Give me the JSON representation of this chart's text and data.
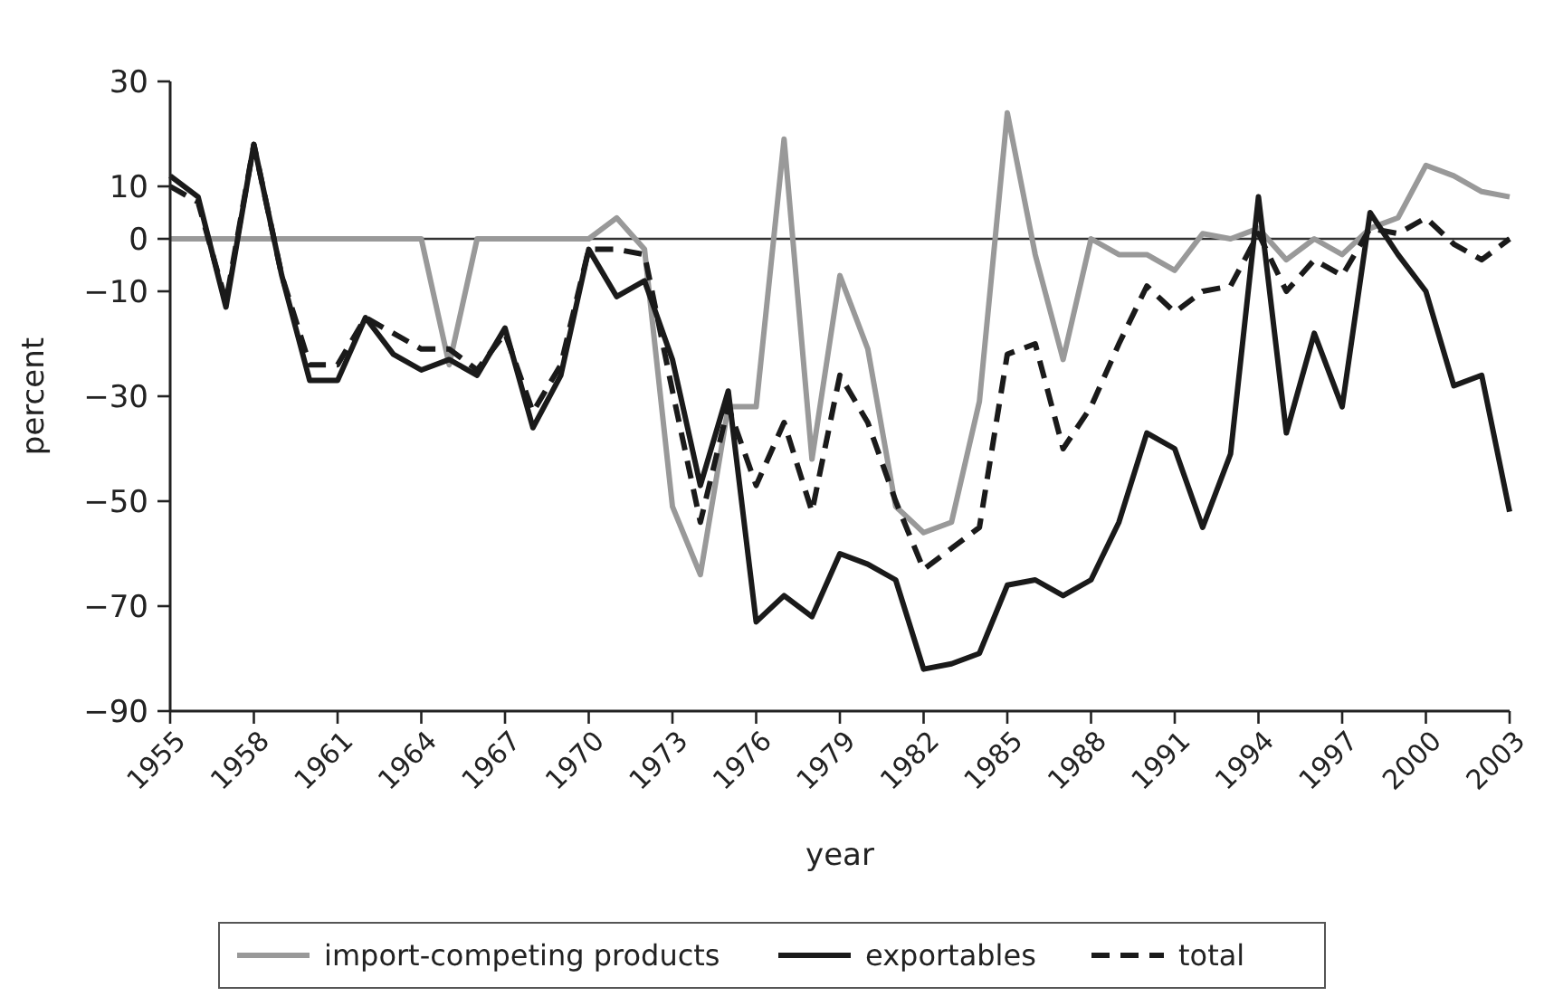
{
  "chart_data": {
    "type": "line",
    "xlabel": "year",
    "ylabel": "percent",
    "x": [
      1955,
      1956,
      1957,
      1958,
      1959,
      1960,
      1961,
      1962,
      1963,
      1964,
      1965,
      1966,
      1967,
      1968,
      1969,
      1970,
      1971,
      1972,
      1973,
      1974,
      1975,
      1976,
      1977,
      1978,
      1979,
      1980,
      1981,
      1982,
      1983,
      1984,
      1985,
      1986,
      1987,
      1988,
      1989,
      1990,
      1991,
      1992,
      1993,
      1994,
      1995,
      1996,
      1997,
      1998,
      1999,
      2000,
      2001,
      2002,
      2003
    ],
    "xlim": [
      1955,
      2003
    ],
    "xticks": [
      1955,
      1958,
      1961,
      1964,
      1967,
      1970,
      1973,
      1976,
      1979,
      1982,
      1985,
      1988,
      1991,
      1994,
      1997,
      2000,
      2003
    ],
    "ylim": [
      -90,
      30
    ],
    "yticks": [
      30,
      10,
      0,
      -10,
      -30,
      -50,
      -70,
      -90
    ],
    "series": [
      {
        "name": "import-competing products",
        "color": "#999999",
        "line_style": "solid",
        "values": [
          0,
          0,
          0,
          0,
          0,
          0,
          0,
          0,
          0,
          0,
          -24,
          0,
          0,
          0,
          0,
          0,
          4,
          -2,
          -51,
          -64,
          -32,
          -32,
          19,
          -42,
          -7,
          -21,
          -51,
          -56,
          -54,
          -31,
          24,
          -3,
          -23,
          0,
          -3,
          -3,
          -6,
          1,
          0,
          2,
          -4,
          0,
          -3,
          2,
          4,
          14,
          12,
          9,
          8
        ]
      },
      {
        "name": "exportables",
        "color": "#1a1a1a",
        "line_style": "solid",
        "values": [
          12,
          8,
          -13,
          18,
          -7,
          -27,
          -27,
          -15,
          -22,
          -25,
          -23,
          -26,
          -17,
          -36,
          -26,
          -2,
          -11,
          -8,
          -23,
          -47,
          -29,
          -73,
          -68,
          -72,
          -60,
          -62,
          -65,
          -82,
          -81,
          -79,
          -66,
          -65,
          -68,
          -65,
          -54,
          -37,
          -40,
          -55,
          -41,
          8,
          -37,
          -18,
          -32,
          5,
          -3,
          -10,
          -28,
          -26,
          -52
        ]
      },
      {
        "name": "total",
        "color": "#1a1a1a",
        "line_style": "dashed",
        "values": [
          10,
          7,
          -12,
          18,
          -7,
          -24,
          -24,
          -15,
          -18,
          -21,
          -21,
          -25,
          -18,
          -33,
          -24,
          -2,
          -2,
          -3,
          -29,
          -54,
          -32,
          -47,
          -35,
          -52,
          -26,
          -35,
          -50,
          -63,
          -59,
          -55,
          -22,
          -20,
          -40,
          -32,
          -20,
          -9,
          -14,
          -10,
          -9,
          1,
          -10,
          -4,
          -7,
          2,
          1,
          4,
          -1,
          -4,
          0
        ]
      }
    ],
    "ref_lines": [
      {
        "axis": "y",
        "value": 0,
        "color": "#333333"
      }
    ],
    "grid": false,
    "legend": "bottom",
    "marker": "none"
  }
}
